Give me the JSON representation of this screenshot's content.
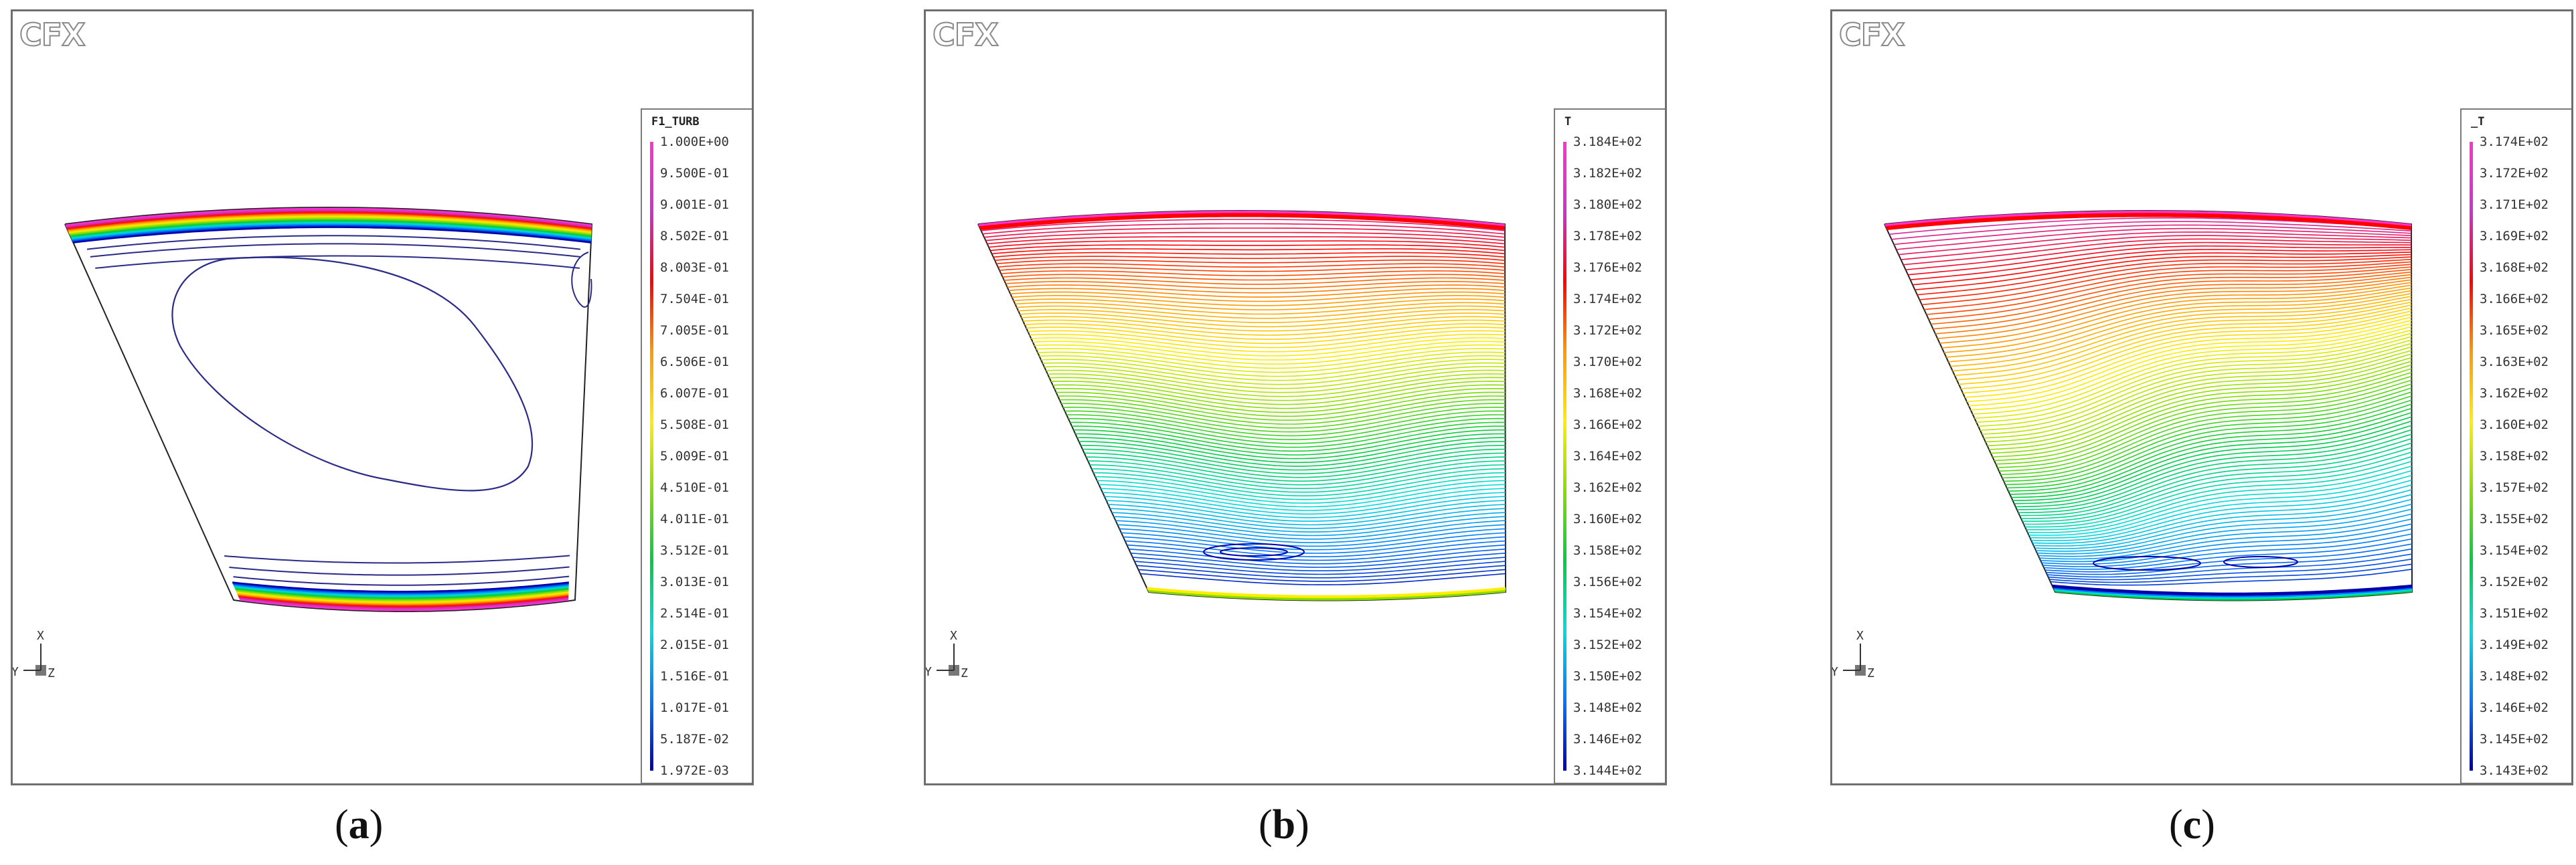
{
  "logo_text": "CFX",
  "triad": {
    "x": "X",
    "y": "Y",
    "z": "Z"
  },
  "panels": [
    {
      "id": "a",
      "caption": "a",
      "legend_title": "F1_TURB",
      "legend_labels": [
        "1.000E+00",
        "9.500E-01",
        "9.001E-01",
        "8.502E-01",
        "8.003E-01",
        "7.504E-01",
        "7.005E-01",
        "6.506E-01",
        "6.007E-01",
        "5.508E-01",
        "5.009E-01",
        "4.510E-01",
        "4.011E-01",
        "3.512E-01",
        "3.013E-01",
        "2.514E-01",
        "2.015E-01",
        "1.516E-01",
        "1.017E-01",
        "5.187E-02",
        "1.972E-03"
      ]
    },
    {
      "id": "b",
      "caption": "b",
      "legend_title": "T",
      "legend_labels": [
        "3.184E+02",
        "3.182E+02",
        "3.180E+02",
        "3.178E+02",
        "3.176E+02",
        "3.174E+02",
        "3.172E+02",
        "3.170E+02",
        "3.168E+02",
        "3.166E+02",
        "3.164E+02",
        "3.162E+02",
        "3.160E+02",
        "3.158E+02",
        "3.156E+02",
        "3.154E+02",
        "3.152E+02",
        "3.150E+02",
        "3.148E+02",
        "3.146E+02",
        "3.144E+02"
      ]
    },
    {
      "id": "c",
      "caption": "c",
      "legend_title": "_T",
      "legend_labels": [
        "3.174E+02",
        "3.172E+02",
        "3.171E+02",
        "3.169E+02",
        "3.168E+02",
        "3.166E+02",
        "3.165E+02",
        "3.163E+02",
        "3.162E+02",
        "3.160E+02",
        "3.158E+02",
        "3.157E+02",
        "3.155E+02",
        "3.154E+02",
        "3.152E+02",
        "3.151E+02",
        "3.149E+02",
        "3.148E+02",
        "3.146E+02",
        "3.145E+02",
        "3.143E+02"
      ]
    }
  ],
  "colors": {
    "spectrum": [
      "#ff33cc",
      "#cc33cc",
      "#ff0000",
      "#ff9900",
      "#ffee00",
      "#88dd00",
      "#00cc44",
      "#00dddd",
      "#0077ff",
      "#0000aa"
    ],
    "frame": "#6e6e6e"
  }
}
